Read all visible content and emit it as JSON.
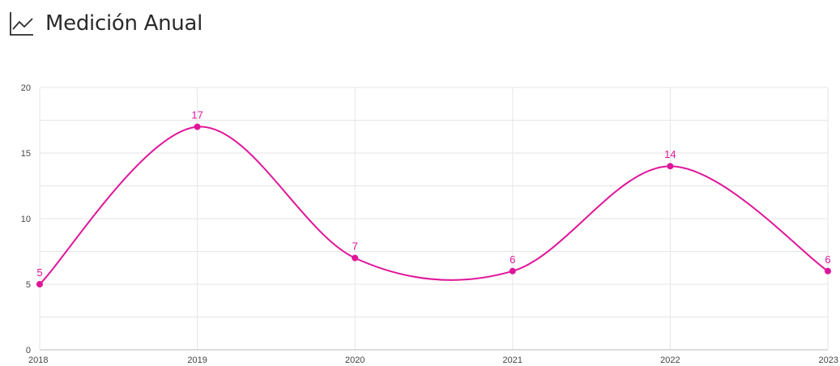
{
  "header": {
    "title": "Medición Anual",
    "icon": "line-chart-icon"
  },
  "colors": {
    "series": "#e0159a",
    "grid": "#e6e6e6",
    "axis": "#bdbdbd",
    "title": "#2b2b2b"
  },
  "chart_data": {
    "type": "line",
    "smooth": true,
    "categories": [
      "2018",
      "2019",
      "2020",
      "2021",
      "2022",
      "2023"
    ],
    "series": [
      {
        "values": [
          5,
          17,
          7,
          6,
          14,
          6
        ]
      }
    ],
    "y_ticks": [
      0,
      5,
      10,
      15,
      20
    ],
    "ylim": [
      0,
      20
    ],
    "grid": true,
    "data_labels": true
  }
}
